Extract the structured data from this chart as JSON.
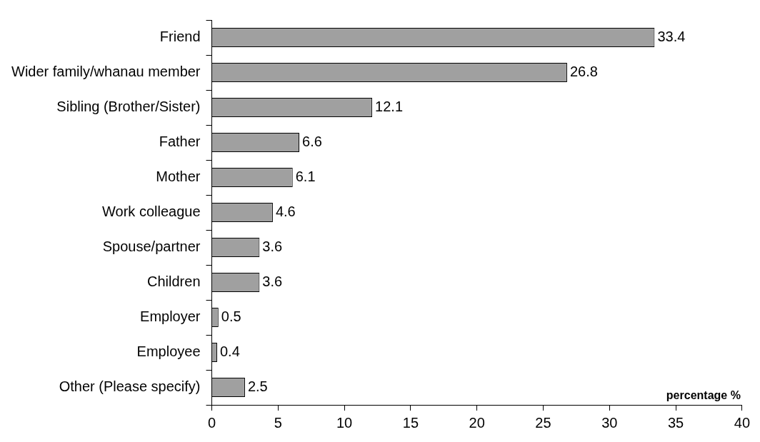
{
  "chart_data": {
    "type": "bar",
    "orientation": "horizontal",
    "xlabel": "percentage %",
    "categories": [
      "Friend",
      "Wider family/whanau member",
      "Sibling (Brother/Sister)",
      "Father",
      "Mother",
      "Work colleague",
      "Spouse/partner",
      "Children",
      "Employer",
      "Employee",
      "Other (Please specify)"
    ],
    "values": [
      33.4,
      26.8,
      12.1,
      6.6,
      6.1,
      4.6,
      3.6,
      3.6,
      0.5,
      0.4,
      2.5
    ],
    "color": "#a0a0a0",
    "xlim": [
      0,
      40
    ],
    "xticks": [
      0,
      5,
      10,
      15,
      20,
      25,
      30,
      35,
      40
    ],
    "grid": false,
    "legend": false,
    "data_labels": true
  }
}
